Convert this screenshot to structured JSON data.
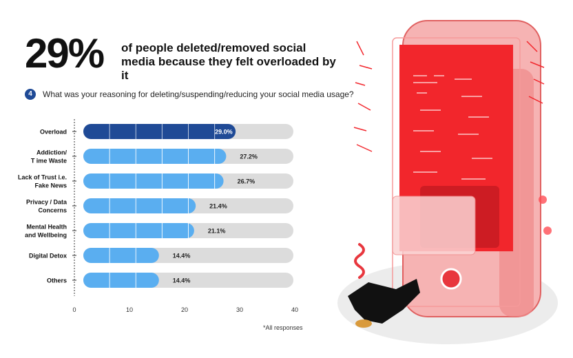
{
  "headline": {
    "stat": "29%",
    "text": "of people deleted/removed social media because they felt overloaded by it"
  },
  "question": {
    "number": "4",
    "text": "What was your reasoning for deleting/suspending/reducing your social media usage?"
  },
  "footnote": "*All responses",
  "colors": {
    "highlight": "#1f4a96",
    "bar": "#5aaef0",
    "track": "#dcdcdc",
    "phone_red": "#f2262c",
    "phone_body": "#f6b3b3"
  },
  "chart_data": {
    "type": "bar",
    "orientation": "horizontal",
    "categories": [
      [
        "Overload"
      ],
      [
        "Addiction/",
        "T ime Waste"
      ],
      [
        "Lack of Trust i.e.",
        "Fake News"
      ],
      [
        "Privacy / Data",
        "Concerns"
      ],
      [
        "Mental Health",
        "and Wellbeing"
      ],
      [
        "Digital Detox"
      ],
      [
        "Others"
      ]
    ],
    "values": [
      29.0,
      27.2,
      26.7,
      21.4,
      21.1,
      14.4,
      14.4
    ],
    "value_labels": [
      "29.0%",
      "27.2%",
      "26.7%",
      "21.4%",
      "21.1%",
      "14.4%",
      "14.4%"
    ],
    "highlight_index": 0,
    "xlim": [
      0,
      40
    ],
    "xticks": [
      0,
      10,
      20,
      30,
      40
    ],
    "grid": false
  }
}
